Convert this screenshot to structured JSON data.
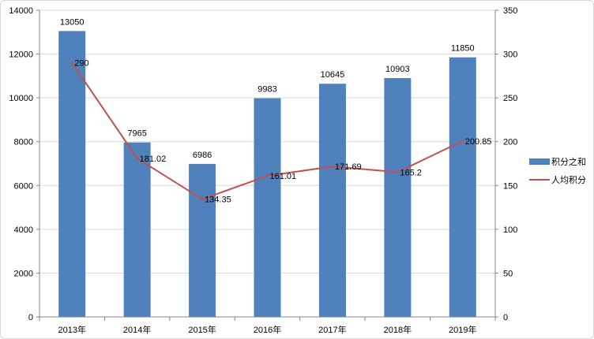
{
  "chart_data": {
    "type": "bar",
    "categories": [
      "2013年",
      "2014年",
      "2015年",
      "2016年",
      "2017年",
      "2018年",
      "2019年"
    ],
    "series": [
      {
        "name": "积分之和",
        "kind": "bar",
        "axis": "left",
        "color": "#4f81bd",
        "values": [
          13050,
          7965,
          6986,
          9983,
          10645,
          10903,
          11850
        ],
        "labels": [
          "13050",
          "7965",
          "6986",
          "9983",
          "10645",
          "10903",
          "11850"
        ]
      },
      {
        "name": "人均积分",
        "kind": "line",
        "axis": "right",
        "color": "#c0504d",
        "values": [
          290,
          181.02,
          134.35,
          161.01,
          171.69,
          165.2,
          200.85
        ],
        "labels": [
          "290",
          "181.02",
          "134.35",
          "161.01",
          "171.69",
          "165.2",
          "200.85"
        ]
      }
    ],
    "y_left": {
      "min": 0,
      "max": 14000,
      "ticks": [
        "0",
        "2000",
        "4000",
        "6000",
        "8000",
        "10000",
        "12000",
        "14000"
      ]
    },
    "y_right": {
      "min": 0,
      "max": 350,
      "ticks": [
        "0",
        "50",
        "100",
        "150",
        "200",
        "250",
        "300",
        "350"
      ]
    },
    "grid": true,
    "legend_position": "right"
  }
}
